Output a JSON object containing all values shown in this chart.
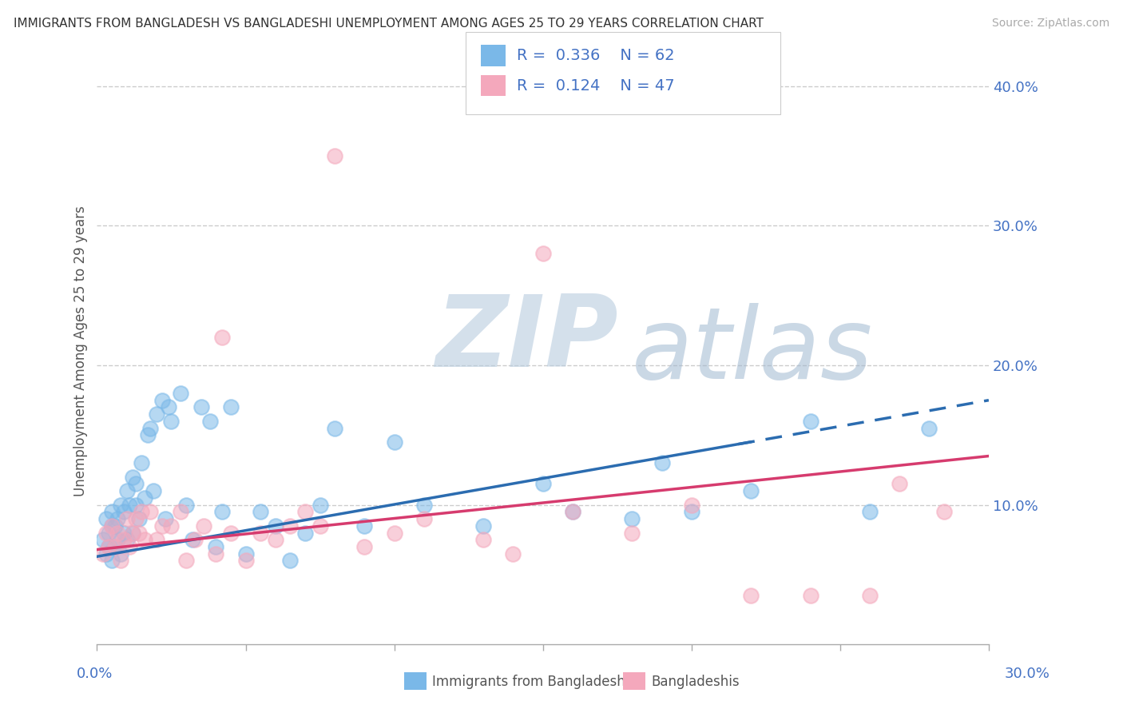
{
  "title": "IMMIGRANTS FROM BANGLADESH VS BANGLADESHI UNEMPLOYMENT AMONG AGES 25 TO 29 YEARS CORRELATION CHART",
  "source": "Source: ZipAtlas.com",
  "ylabel": "Unemployment Among Ages 25 to 29 years",
  "legend_label1": "Immigrants from Bangladesh",
  "legend_label2": "Bangladeshis",
  "R1": 0.336,
  "N1": 62,
  "R2": 0.124,
  "N2": 47,
  "blue_color": "#7ab8e8",
  "pink_color": "#f4a8bc",
  "blue_line_color": "#2b6cb0",
  "pink_line_color": "#d63b6e",
  "axis_label_color": "#4472c4",
  "watermark_color": "#c8d9ee",
  "watermark_text": "ZIPatlas",
  "xmin": 0.0,
  "xmax": 0.3,
  "ymin": 0.0,
  "ymax": 0.42,
  "blue_trend_x0": 0.0,
  "blue_trend_y0": 0.063,
  "blue_trend_x1": 0.3,
  "blue_trend_y1": 0.175,
  "blue_solid_xend": 0.22,
  "pink_trend_x0": 0.0,
  "pink_trend_y0": 0.068,
  "pink_trend_x1": 0.3,
  "pink_trend_y1": 0.135
}
